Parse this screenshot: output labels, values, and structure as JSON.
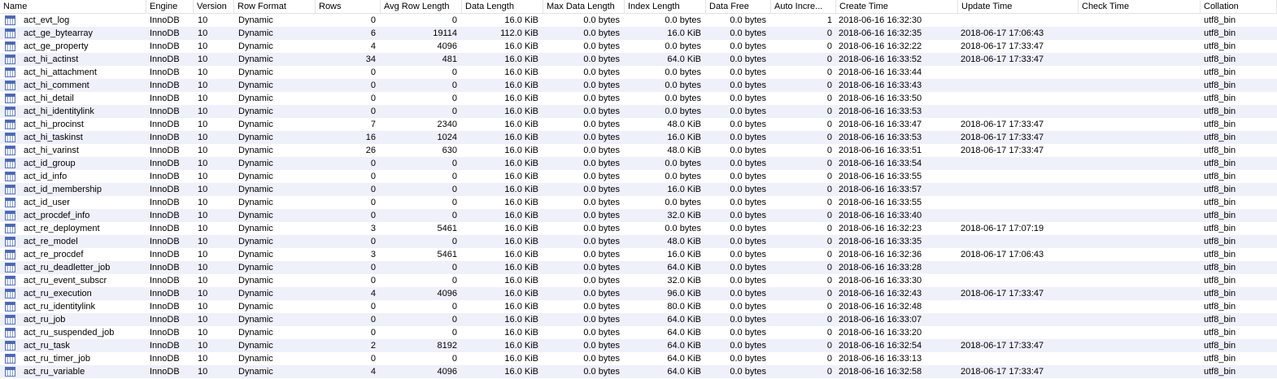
{
  "columns": [
    "Name",
    "Engine",
    "Version",
    "Row Format",
    "Rows",
    "Avg Row Length",
    "Data Length",
    "Max Data Length",
    "Index Length",
    "Data Free",
    "Auto Incre...",
    "Create Time",
    "Update Time",
    "Check Time",
    "Collation"
  ],
  "rows": [
    [
      "act_evt_log",
      "InnoDB",
      "10",
      "Dynamic",
      "0",
      "0",
      "16.0 KiB",
      "0.0 bytes",
      "0.0 bytes",
      "0.0 bytes",
      "1",
      "2018-06-16 16:32:30",
      "",
      "",
      "utf8_bin"
    ],
    [
      "act_ge_bytearray",
      "InnoDB",
      "10",
      "Dynamic",
      "6",
      "19114",
      "112.0 KiB",
      "0.0 bytes",
      "16.0 KiB",
      "0.0 bytes",
      "0",
      "2018-06-16 16:32:35",
      "2018-06-17 17:06:43",
      "",
      "utf8_bin"
    ],
    [
      "act_ge_property",
      "InnoDB",
      "10",
      "Dynamic",
      "4",
      "4096",
      "16.0 KiB",
      "0.0 bytes",
      "0.0 bytes",
      "0.0 bytes",
      "0",
      "2018-06-16 16:32:22",
      "2018-06-17 17:33:47",
      "",
      "utf8_bin"
    ],
    [
      "act_hi_actinst",
      "InnoDB",
      "10",
      "Dynamic",
      "34",
      "481",
      "16.0 KiB",
      "0.0 bytes",
      "64.0 KiB",
      "0.0 bytes",
      "0",
      "2018-06-16 16:33:52",
      "2018-06-17 17:33:47",
      "",
      "utf8_bin"
    ],
    [
      "act_hi_attachment",
      "InnoDB",
      "10",
      "Dynamic",
      "0",
      "0",
      "16.0 KiB",
      "0.0 bytes",
      "0.0 bytes",
      "0.0 bytes",
      "0",
      "2018-06-16 16:33:44",
      "",
      "",
      "utf8_bin"
    ],
    [
      "act_hi_comment",
      "InnoDB",
      "10",
      "Dynamic",
      "0",
      "0",
      "16.0 KiB",
      "0.0 bytes",
      "0.0 bytes",
      "0.0 bytes",
      "0",
      "2018-06-16 16:33:43",
      "",
      "",
      "utf8_bin"
    ],
    [
      "act_hi_detail",
      "InnoDB",
      "10",
      "Dynamic",
      "0",
      "0",
      "16.0 KiB",
      "0.0 bytes",
      "0.0 bytes",
      "0.0 bytes",
      "0",
      "2018-06-16 16:33:50",
      "",
      "",
      "utf8_bin"
    ],
    [
      "act_hi_identitylink",
      "InnoDB",
      "10",
      "Dynamic",
      "0",
      "0",
      "16.0 KiB",
      "0.0 bytes",
      "0.0 bytes",
      "0.0 bytes",
      "0",
      "2018-06-16 16:33:53",
      "",
      "",
      "utf8_bin"
    ],
    [
      "act_hi_procinst",
      "InnoDB",
      "10",
      "Dynamic",
      "7",
      "2340",
      "16.0 KiB",
      "0.0 bytes",
      "48.0 KiB",
      "0.0 bytes",
      "0",
      "2018-06-16 16:33:47",
      "2018-06-17 17:33:47",
      "",
      "utf8_bin"
    ],
    [
      "act_hi_taskinst",
      "InnoDB",
      "10",
      "Dynamic",
      "16",
      "1024",
      "16.0 KiB",
      "0.0 bytes",
      "16.0 KiB",
      "0.0 bytes",
      "0",
      "2018-06-16 16:33:53",
      "2018-06-17 17:33:47",
      "",
      "utf8_bin"
    ],
    [
      "act_hi_varinst",
      "InnoDB",
      "10",
      "Dynamic",
      "26",
      "630",
      "16.0 KiB",
      "0.0 bytes",
      "48.0 KiB",
      "0.0 bytes",
      "0",
      "2018-06-16 16:33:51",
      "2018-06-17 17:33:47",
      "",
      "utf8_bin"
    ],
    [
      "act_id_group",
      "InnoDB",
      "10",
      "Dynamic",
      "0",
      "0",
      "16.0 KiB",
      "0.0 bytes",
      "0.0 bytes",
      "0.0 bytes",
      "0",
      "2018-06-16 16:33:54",
      "",
      "",
      "utf8_bin"
    ],
    [
      "act_id_info",
      "InnoDB",
      "10",
      "Dynamic",
      "0",
      "0",
      "16.0 KiB",
      "0.0 bytes",
      "0.0 bytes",
      "0.0 bytes",
      "0",
      "2018-06-16 16:33:55",
      "",
      "",
      "utf8_bin"
    ],
    [
      "act_id_membership",
      "InnoDB",
      "10",
      "Dynamic",
      "0",
      "0",
      "16.0 KiB",
      "0.0 bytes",
      "16.0 KiB",
      "0.0 bytes",
      "0",
      "2018-06-16 16:33:57",
      "",
      "",
      "utf8_bin"
    ],
    [
      "act_id_user",
      "InnoDB",
      "10",
      "Dynamic",
      "0",
      "0",
      "16.0 KiB",
      "0.0 bytes",
      "0.0 bytes",
      "0.0 bytes",
      "0",
      "2018-06-16 16:33:55",
      "",
      "",
      "utf8_bin"
    ],
    [
      "act_procdef_info",
      "InnoDB",
      "10",
      "Dynamic",
      "0",
      "0",
      "16.0 KiB",
      "0.0 bytes",
      "32.0 KiB",
      "0.0 bytes",
      "0",
      "2018-06-16 16:33:40",
      "",
      "",
      "utf8_bin"
    ],
    [
      "act_re_deployment",
      "InnoDB",
      "10",
      "Dynamic",
      "3",
      "5461",
      "16.0 KiB",
      "0.0 bytes",
      "0.0 bytes",
      "0.0 bytes",
      "0",
      "2018-06-16 16:32:23",
      "2018-06-17 17:07:19",
      "",
      "utf8_bin"
    ],
    [
      "act_re_model",
      "InnoDB",
      "10",
      "Dynamic",
      "0",
      "0",
      "16.0 KiB",
      "0.0 bytes",
      "48.0 KiB",
      "0.0 bytes",
      "0",
      "2018-06-16 16:33:35",
      "",
      "",
      "utf8_bin"
    ],
    [
      "act_re_procdef",
      "InnoDB",
      "10",
      "Dynamic",
      "3",
      "5461",
      "16.0 KiB",
      "0.0 bytes",
      "16.0 KiB",
      "0.0 bytes",
      "0",
      "2018-06-16 16:32:36",
      "2018-06-17 17:06:43",
      "",
      "utf8_bin"
    ],
    [
      "act_ru_deadletter_job",
      "InnoDB",
      "10",
      "Dynamic",
      "0",
      "0",
      "16.0 KiB",
      "0.0 bytes",
      "64.0 KiB",
      "0.0 bytes",
      "0",
      "2018-06-16 16:33:28",
      "",
      "",
      "utf8_bin"
    ],
    [
      "act_ru_event_subscr",
      "InnoDB",
      "10",
      "Dynamic",
      "0",
      "0",
      "16.0 KiB",
      "0.0 bytes",
      "32.0 KiB",
      "0.0 bytes",
      "0",
      "2018-06-16 16:33:30",
      "",
      "",
      "utf8_bin"
    ],
    [
      "act_ru_execution",
      "InnoDB",
      "10",
      "Dynamic",
      "4",
      "4096",
      "16.0 KiB",
      "0.0 bytes",
      "96.0 KiB",
      "0.0 bytes",
      "0",
      "2018-06-16 16:32:43",
      "2018-06-17 17:33:47",
      "",
      "utf8_bin"
    ],
    [
      "act_ru_identitylink",
      "InnoDB",
      "10",
      "Dynamic",
      "0",
      "0",
      "16.0 KiB",
      "0.0 bytes",
      "80.0 KiB",
      "0.0 bytes",
      "0",
      "2018-06-16 16:32:48",
      "",
      "",
      "utf8_bin"
    ],
    [
      "act_ru_job",
      "InnoDB",
      "10",
      "Dynamic",
      "0",
      "0",
      "16.0 KiB",
      "0.0 bytes",
      "64.0 KiB",
      "0.0 bytes",
      "0",
      "2018-06-16 16:33:07",
      "",
      "",
      "utf8_bin"
    ],
    [
      "act_ru_suspended_job",
      "InnoDB",
      "10",
      "Dynamic",
      "0",
      "0",
      "16.0 KiB",
      "0.0 bytes",
      "64.0 KiB",
      "0.0 bytes",
      "0",
      "2018-06-16 16:33:20",
      "",
      "",
      "utf8_bin"
    ],
    [
      "act_ru_task",
      "InnoDB",
      "10",
      "Dynamic",
      "2",
      "8192",
      "16.0 KiB",
      "0.0 bytes",
      "64.0 KiB",
      "0.0 bytes",
      "0",
      "2018-06-16 16:32:54",
      "2018-06-17 17:33:47",
      "",
      "utf8_bin"
    ],
    [
      "act_ru_timer_job",
      "InnoDB",
      "10",
      "Dynamic",
      "0",
      "0",
      "16.0 KiB",
      "0.0 bytes",
      "64.0 KiB",
      "0.0 bytes",
      "0",
      "2018-06-16 16:33:13",
      "",
      "",
      "utf8_bin"
    ],
    [
      "act_ru_variable",
      "InnoDB",
      "10",
      "Dynamic",
      "4",
      "4096",
      "16.0 KiB",
      "0.0 bytes",
      "64.0 KiB",
      "0.0 bytes",
      "0",
      "2018-06-16 16:32:58",
      "2018-06-17 17:33:47",
      "",
      "utf8_bin"
    ]
  ],
  "colors": {
    "alt_row": "#eef0fa",
    "grid_line": "#e3e3e3",
    "icon_stroke": "#5570b8"
  },
  "row_icon": "table-icon"
}
